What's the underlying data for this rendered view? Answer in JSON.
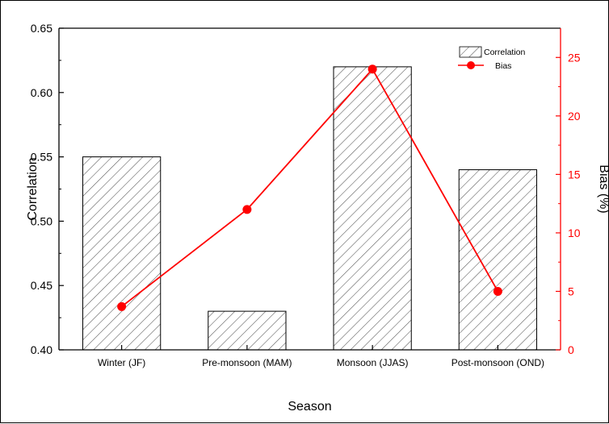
{
  "chart_data": {
    "type": "bar",
    "categories": [
      "Winter (JF)",
      "Pre-monsoon (MAM)",
      "Monsoon (JJAS)",
      "Post-monsoon (OND)"
    ],
    "series": [
      {
        "name": "Correlation",
        "type": "bar",
        "axis": "left",
        "values": [
          0.55,
          0.43,
          0.62,
          0.54
        ]
      },
      {
        "name": "Bias",
        "type": "line",
        "axis": "right",
        "values": [
          3.7,
          12.0,
          24.0,
          5.0
        ]
      }
    ],
    "xlabel": "Season",
    "ylabel": "Correlation",
    "y2label": "Bias (%)",
    "ylim": [
      0.4,
      0.65
    ],
    "y2lim": [
      0,
      27.5
    ],
    "yticks": [
      "0.40",
      "0.45",
      "0.50",
      "0.55",
      "0.60",
      "0.65"
    ],
    "y2ticks": [
      "0",
      "5",
      "10",
      "15",
      "20",
      "25"
    ],
    "legend_position": "top-right",
    "grid": false,
    "colors": {
      "bar_hatch": "#555555",
      "bias": "#ff0000",
      "axis": "#000000"
    }
  }
}
